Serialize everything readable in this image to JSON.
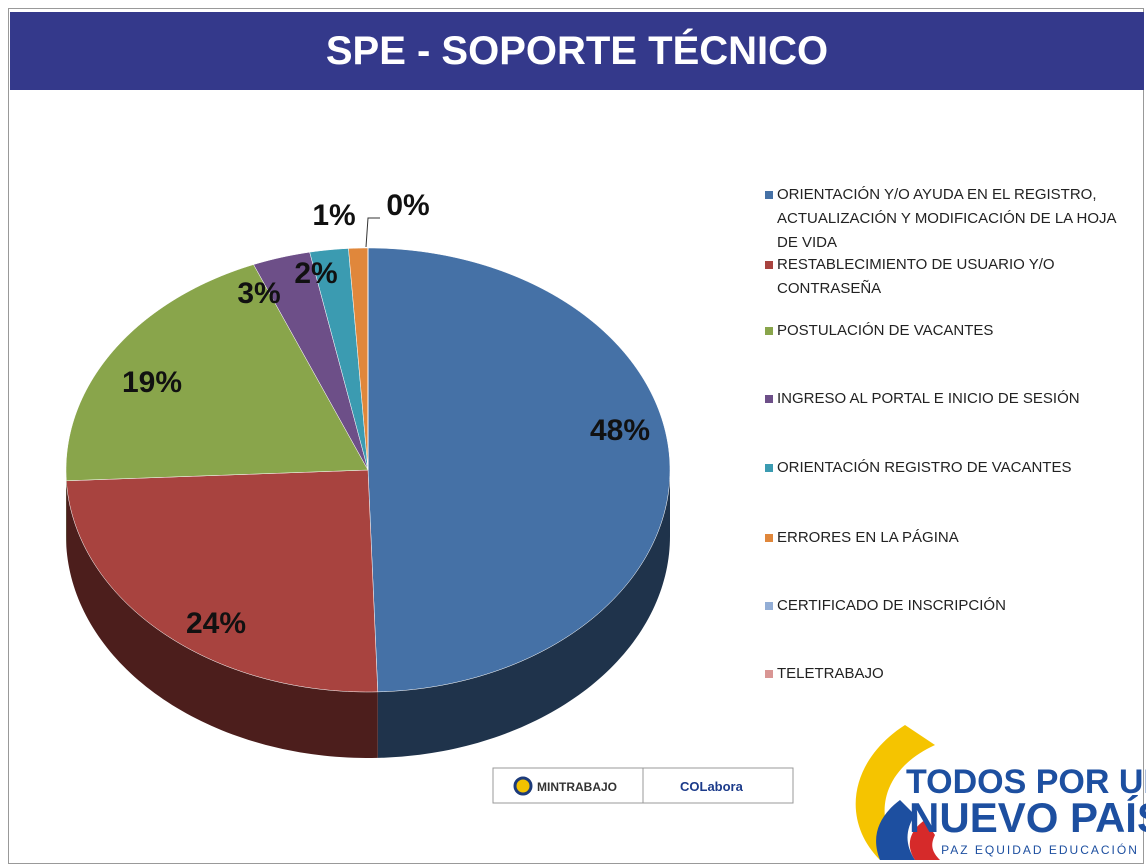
{
  "header": {
    "title": "SPE - SOPORTE TÉCNICO"
  },
  "chart_data": {
    "type": "pie",
    "categories": [
      "ORIENTACIÓN Y/O AYUDA EN EL REGISTRO, ACTUALIZACIÓN Y MODIFICACIÓN DE LA HOJA DE VIDA",
      "RESTABLECIMIENTO DE USUARIO Y/O CONTRASEÑA",
      "POSTULACIÓN DE VACANTES",
      "INGRESO AL PORTAL E INICIO DE SESIÓN",
      " ORIENTACIÓN REGISTRO DE VACANTES",
      "ERRORES EN LA PÁGINA",
      "CERTIFICADO DE INSCRIPCIÓN",
      "TELETRABAJO"
    ],
    "values": [
      48,
      24,
      19,
      3,
      2,
      1,
      0,
      0
    ],
    "value_labels": [
      "48%",
      "24%",
      "19%",
      "3%",
      "2%",
      "1%",
      "0%",
      null
    ],
    "colors": [
      "#4571a6",
      "#a8433f",
      "#89a54b",
      "#6d4f88",
      "#3b9bb1",
      "#e0873b",
      "#93aed6",
      "#d99694"
    ],
    "legend": "right"
  },
  "footer": {
    "left_logo": "MINTRABAJO",
    "right_logo": "COLabora",
    "slogan_1": "TODOS POR UN",
    "slogan_2": "NUEVO PAÍS",
    "slogan_3": "PAZ  EQUIDAD  EDUCACIÓN"
  }
}
